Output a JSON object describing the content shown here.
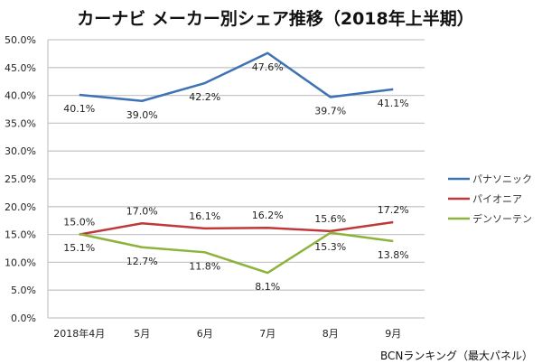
{
  "chart_data": {
    "type": "line",
    "title": "カーナビ メーカー別シェア推移（2018年上半期）",
    "xlabel": "",
    "ylabel": "",
    "categories": [
      "2018年4月",
      "5月",
      "6月",
      "7月",
      "8月",
      "9月"
    ],
    "y_ticks": [
      "0.0%",
      "5.0%",
      "10.0%",
      "15.0%",
      "20.0%",
      "25.0%",
      "30.0%",
      "35.0%",
      "40.0%",
      "45.0%",
      "50.0%"
    ],
    "ylim": [
      0,
      50
    ],
    "grid": true,
    "legend_position": "right",
    "series": [
      {
        "name": "パナソニック",
        "color": "#3f72b5",
        "values": [
          40.1,
          39.0,
          42.2,
          47.6,
          39.7,
          41.1
        ],
        "labels": [
          "40.1%",
          "39.0%",
          "42.2%",
          "47.6%",
          "39.7%",
          "41.1%"
        ],
        "label_side": [
          "below",
          "below",
          "below",
          "below",
          "below",
          "below"
        ]
      },
      {
        "name": "パイオニア",
        "color": "#c0383a",
        "values": [
          15.0,
          17.0,
          16.1,
          16.2,
          15.6,
          17.2
        ],
        "labels": [
          "15.0%",
          "17.0%",
          "16.1%",
          "16.2%",
          "15.6%",
          "17.2%"
        ],
        "label_side": [
          "above",
          "above",
          "above",
          "above",
          "above",
          "above"
        ]
      },
      {
        "name": "デンソーテン",
        "color": "#8db33c",
        "values": [
          15.1,
          12.7,
          11.8,
          8.1,
          15.3,
          13.8
        ],
        "labels": [
          "15.1%",
          "12.7%",
          "11.8%",
          "8.1%",
          "15.3%",
          "13.8%"
        ],
        "label_side": [
          "below",
          "below",
          "below",
          "below",
          "below",
          "below"
        ]
      }
    ],
    "source_note": "BCNランキング（最大パネル）"
  }
}
